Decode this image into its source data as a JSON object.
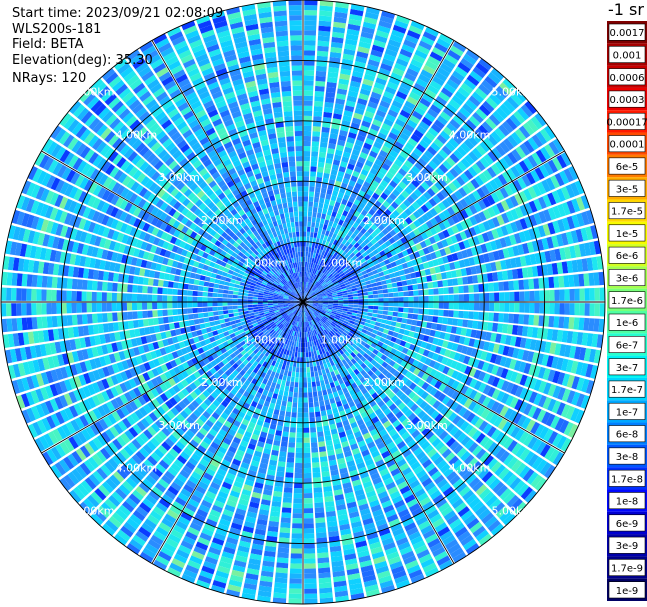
{
  "info": {
    "start_time": "Start time: 2023/09/21 02:08:09",
    "device": "WLS200s-181",
    "field": "Field: BETA",
    "elevation": "Elevation(deg): 35.30",
    "nrays": "NRays: 120"
  },
  "colorbar": {
    "title": "-1 sr",
    "labels": [
      "0.0017",
      "0.001",
      "0.0006",
      "0.0003",
      "0.00017",
      "0.0001",
      "6e-5",
      "3e-5",
      "1.7e-5",
      "1e-5",
      "6e-6",
      "3e-6",
      "1.7e-6",
      "1e-6",
      "6e-7",
      "3e-7",
      "1.7e-7",
      "1e-7",
      "6e-8",
      "3e-8",
      "1.7e-8",
      "1e-8",
      "6e-9",
      "3e-9",
      "1.7e-9",
      "1e-9"
    ],
    "colors": [
      "#7f0000",
      "#a40000",
      "#c80000",
      "#ec0000",
      "#ff1a00",
      "#ff4a00",
      "#ff7b00",
      "#ffab00",
      "#ffd700",
      "#f8fc00",
      "#d2ff21",
      "#a3ff4f",
      "#78ff7a",
      "#50ffa3",
      "#27ffcd",
      "#00f4f4",
      "#00d4ff",
      "#00a8ff",
      "#0080ff",
      "#0058ff",
      "#0030ff",
      "#0008ff",
      "#0000d1",
      "#0000ab",
      "#000088",
      "#000064"
    ]
  },
  "chart_data": {
    "type": "heatmap",
    "projection": "polar",
    "title": "",
    "nrays": 120,
    "range_max_km": 5.0,
    "range_rings_km": [
      1.0,
      2.0,
      3.0,
      4.0,
      5.0
    ],
    "range_ring_labels": [
      "1.00km",
      "2.00km",
      "3.00km",
      "4.00km",
      "5.00km"
    ],
    "colorscale": "log",
    "value_range": [
      1e-09,
      0.0017
    ],
    "dominant_values": [
      1e-08,
      3e-08,
      1.7e-07
    ]
  }
}
